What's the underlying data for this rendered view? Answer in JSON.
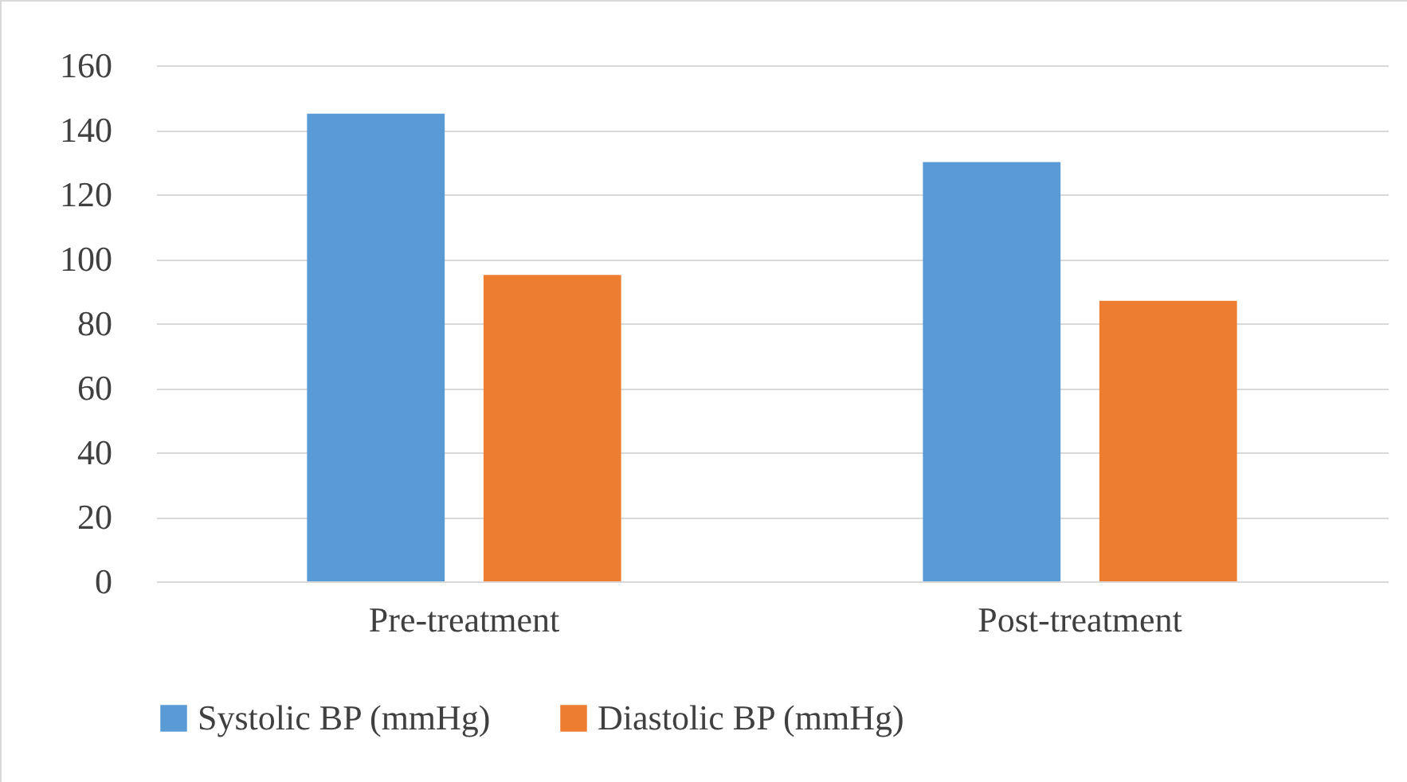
{
  "chart_data": {
    "type": "bar",
    "categories": [
      "Pre-treatment",
      "Post-treatment"
    ],
    "series": [
      {
        "name": "Systolic BP (mmHg)",
        "color": "#5b9bd5",
        "values": [
          145,
          130
        ]
      },
      {
        "name": "Diastolic BP (mmHg)",
        "color": "#ed7d31",
        "values": [
          95,
          87
        ]
      }
    ],
    "ylim": [
      0,
      160
    ],
    "yticks": [
      0,
      20,
      40,
      60,
      80,
      100,
      120,
      140,
      160
    ],
    "grid": "y",
    "legend": "bottom"
  }
}
